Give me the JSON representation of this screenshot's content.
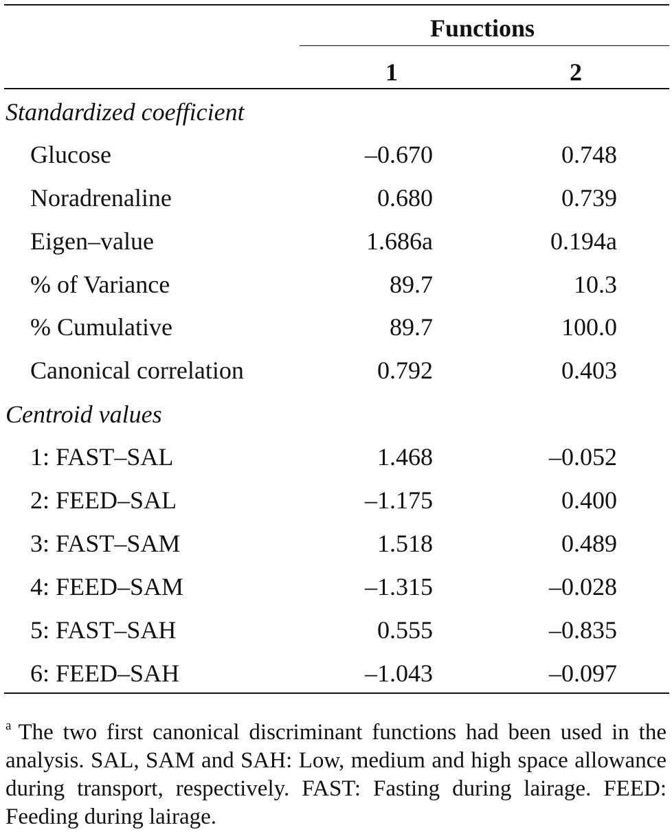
{
  "header": {
    "group_label": "Functions",
    "col1": "1",
    "col2": "2"
  },
  "sections": [
    {
      "title": "Standardized coefficient",
      "rows": [
        {
          "label": "Glucose",
          "v1": "–0.670",
          "v2": "0.748"
        },
        {
          "label": "Noradrenaline",
          "v1": "0.680",
          "v2": "0.739"
        },
        {
          "label": "Eigen–value",
          "v1": "1.686a",
          "v2": "0.194a"
        },
        {
          "label": "% of Variance",
          "v1": "89.7",
          "v2": "10.3"
        },
        {
          "label": "% Cumulative",
          "v1": "89.7",
          "v2": "100.0"
        },
        {
          "label": "Canonical correlation",
          "v1": "0.792",
          "v2": "0.403"
        }
      ]
    },
    {
      "title": "Centroid values",
      "rows": [
        {
          "label": "1: FAST–SAL",
          "v1": "1.468",
          "v2": "–0.052"
        },
        {
          "label": "2: FEED–SAL",
          "v1": "–1.175",
          "v2": "0.400"
        },
        {
          "label": "3: FAST–SAM",
          "v1": "1.518",
          "v2": "0.489"
        },
        {
          "label": "4: FEED–SAM",
          "v1": "–1.315",
          "v2": "–0.028"
        },
        {
          "label": "5: FAST–SAH",
          "v1": "0.555",
          "v2": "–0.835"
        },
        {
          "label": "6: FEED–SAH",
          "v1": "–1.043",
          "v2": "–0.097"
        }
      ]
    }
  ],
  "footnote": {
    "marker": "a",
    "text": "The two first canonical discriminant functions had been used in the analysis. SAL, SAM and SAH: Low, medium and high space allowance during transport, respectively. FAST: Fasting during lairage. FEED: Feeding during lairage."
  }
}
